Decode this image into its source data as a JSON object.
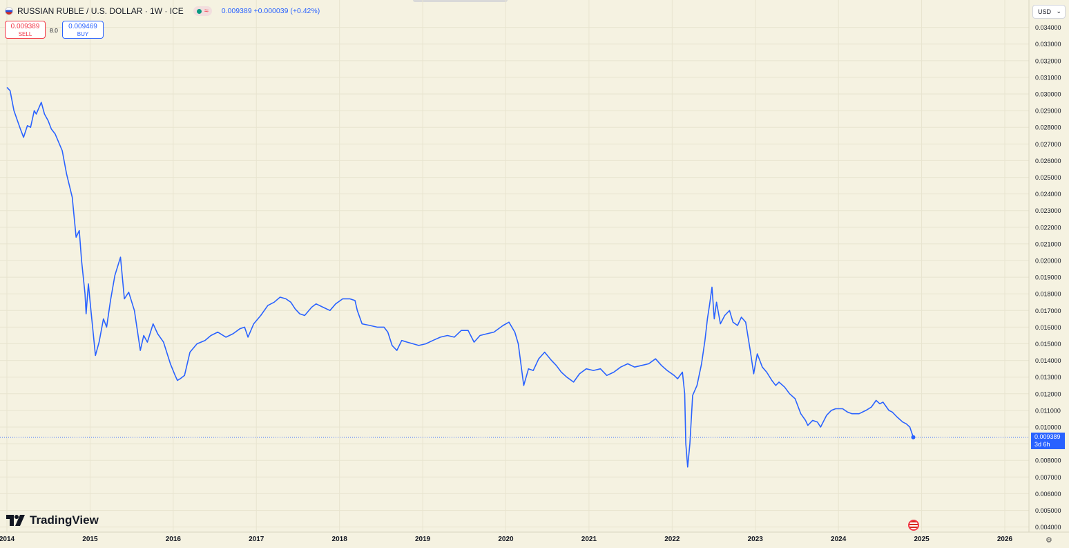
{
  "header": {
    "title": "RUSSIAN RUBLE / U.S. DOLLAR · 1W · ICE",
    "quote": "0.009389 +0.000039 (+0.42%)"
  },
  "trade": {
    "sell_price": "0.009389",
    "sell_label": "SELL",
    "spread": "8.0",
    "buy_price": "0.009469",
    "buy_label": "BUY"
  },
  "currency_selector": "USD",
  "last_price_label": {
    "price": "0.009389",
    "countdown": "3d 6h"
  },
  "brand": "TradingView",
  "colors": {
    "line": "#2962ff",
    "background": "#f5f2e1",
    "sell": "#f23645",
    "buy": "#2962ff"
  },
  "chart_data": {
    "type": "line",
    "title": "RUSSIAN RUBLE / U.S. DOLLAR · 1W · ICE",
    "xlabel": "",
    "ylabel": "",
    "x_ticks": [
      "2014",
      "2015",
      "2016",
      "2017",
      "2018",
      "2019",
      "2020",
      "2021",
      "2022",
      "2023",
      "2024",
      "2025",
      "2026"
    ],
    "y_ticks": [
      "0.004000",
      "0.005000",
      "0.006000",
      "0.007000",
      "0.008000",
      "0.009000",
      "0.010000",
      "0.011000",
      "0.012000",
      "0.013000",
      "0.014000",
      "0.015000",
      "0.016000",
      "0.017000",
      "0.018000",
      "0.019000",
      "0.020000",
      "0.021000",
      "0.022000",
      "0.023000",
      "0.024000",
      "0.025000",
      "0.026000",
      "0.027000",
      "0.028000",
      "0.029000",
      "0.030000",
      "0.031000",
      "0.032000",
      "0.033000",
      "0.034000"
    ],
    "ylim": [
      0.0039,
      0.0344
    ],
    "xlim": [
      "2014-01-01",
      "2026-09-01"
    ],
    "y_axis_side": "right",
    "grid": true,
    "last_price": 0.009389,
    "series": [
      {
        "values": [
          [
            "2014-01-01",
            0.0304
          ],
          [
            "2014-01-15",
            0.0302
          ],
          [
            "2014-02-01",
            0.029
          ],
          [
            "2014-03-01",
            0.0279
          ],
          [
            "2014-03-15",
            0.0274
          ],
          [
            "2014-04-01",
            0.0281
          ],
          [
            "2014-04-15",
            0.028
          ],
          [
            "2014-05-01",
            0.029
          ],
          [
            "2014-05-10",
            0.0288
          ],
          [
            "2014-06-01",
            0.0295
          ],
          [
            "2014-06-15",
            0.0288
          ],
          [
            "2014-07-01",
            0.0284
          ],
          [
            "2014-07-15",
            0.0279
          ],
          [
            "2014-08-01",
            0.0276
          ],
          [
            "2014-09-01",
            0.0266
          ],
          [
            "2014-09-20",
            0.0252
          ],
          [
            "2014-10-15",
            0.0238
          ],
          [
            "2014-11-01",
            0.0214
          ],
          [
            "2014-11-15",
            0.0218
          ],
          [
            "2014-11-25",
            0.02
          ],
          [
            "2014-12-10",
            0.018
          ],
          [
            "2014-12-15",
            0.0168
          ],
          [
            "2014-12-25",
            0.0186
          ],
          [
            "2015-01-05",
            0.017
          ],
          [
            "2015-01-25",
            0.0143
          ],
          [
            "2015-02-10",
            0.0151
          ],
          [
            "2015-03-01",
            0.0165
          ],
          [
            "2015-03-15",
            0.016
          ],
          [
            "2015-04-01",
            0.0176
          ],
          [
            "2015-04-20",
            0.0191
          ],
          [
            "2015-05-15",
            0.0202
          ],
          [
            "2015-06-01",
            0.0177
          ],
          [
            "2015-06-20",
            0.0181
          ],
          [
            "2015-07-15",
            0.017
          ],
          [
            "2015-08-10",
            0.0146
          ],
          [
            "2015-08-25",
            0.0155
          ],
          [
            "2015-09-10",
            0.0151
          ],
          [
            "2015-10-05",
            0.0162
          ],
          [
            "2015-10-25",
            0.0156
          ],
          [
            "2015-11-20",
            0.0151
          ],
          [
            "2015-12-20",
            0.0138
          ],
          [
            "2016-01-10",
            0.0131
          ],
          [
            "2016-01-20",
            0.0128
          ],
          [
            "2016-02-01",
            0.0129
          ],
          [
            "2016-02-20",
            0.0131
          ],
          [
            "2016-03-15",
            0.0145
          ],
          [
            "2016-04-15",
            0.015
          ],
          [
            "2016-05-20",
            0.0152
          ],
          [
            "2016-06-15",
            0.0155
          ],
          [
            "2016-07-15",
            0.0157
          ],
          [
            "2016-08-20",
            0.0154
          ],
          [
            "2016-09-20",
            0.0156
          ],
          [
            "2016-10-20",
            0.0159
          ],
          [
            "2016-11-10",
            0.016
          ],
          [
            "2016-11-25",
            0.0154
          ],
          [
            "2016-12-20",
            0.0162
          ],
          [
            "2017-01-20",
            0.0167
          ],
          [
            "2017-02-20",
            0.0173
          ],
          [
            "2017-03-20",
            0.0175
          ],
          [
            "2017-04-15",
            0.0178
          ],
          [
            "2017-05-10",
            0.0177
          ],
          [
            "2017-06-01",
            0.0175
          ],
          [
            "2017-06-20",
            0.0171
          ],
          [
            "2017-07-10",
            0.0168
          ],
          [
            "2017-08-01",
            0.0167
          ],
          [
            "2017-09-01",
            0.0172
          ],
          [
            "2017-09-20",
            0.0174
          ],
          [
            "2017-10-20",
            0.0172
          ],
          [
            "2017-11-20",
            0.017
          ],
          [
            "2017-12-15",
            0.0174
          ],
          [
            "2018-01-15",
            0.0177
          ],
          [
            "2018-02-15",
            0.0177
          ],
          [
            "2018-03-10",
            0.0176
          ],
          [
            "2018-03-20",
            0.017
          ],
          [
            "2018-04-10",
            0.0162
          ],
          [
            "2018-05-15",
            0.0161
          ],
          [
            "2018-06-15",
            0.016
          ],
          [
            "2018-07-15",
            0.016
          ],
          [
            "2018-08-01",
            0.0157
          ],
          [
            "2018-08-20",
            0.0149
          ],
          [
            "2018-09-10",
            0.0146
          ],
          [
            "2018-10-01",
            0.0152
          ],
          [
            "2018-10-25",
            0.0151
          ],
          [
            "2018-11-20",
            0.015
          ],
          [
            "2018-12-15",
            0.0149
          ],
          [
            "2019-01-15",
            0.015
          ],
          [
            "2019-02-15",
            0.0152
          ],
          [
            "2019-03-20",
            0.0154
          ],
          [
            "2019-04-20",
            0.0155
          ],
          [
            "2019-05-20",
            0.0154
          ],
          [
            "2019-06-20",
            0.0158
          ],
          [
            "2019-07-20",
            0.0158
          ],
          [
            "2019-08-15",
            0.0151
          ],
          [
            "2019-09-10",
            0.0155
          ],
          [
            "2019-10-10",
            0.0156
          ],
          [
            "2019-11-10",
            0.0157
          ],
          [
            "2019-12-20",
            0.0161
          ],
          [
            "2020-01-15",
            0.0163
          ],
          [
            "2020-02-10",
            0.0157
          ],
          [
            "2020-02-25",
            0.015
          ],
          [
            "2020-03-20",
            0.0125
          ],
          [
            "2020-04-10",
            0.0135
          ],
          [
            "2020-05-01",
            0.0134
          ],
          [
            "2020-05-25",
            0.0141
          ],
          [
            "2020-06-20",
            0.0145
          ],
          [
            "2020-07-20",
            0.014
          ],
          [
            "2020-08-10",
            0.0137
          ],
          [
            "2020-09-01",
            0.0133
          ],
          [
            "2020-09-25",
            0.013
          ],
          [
            "2020-10-25",
            0.0127
          ],
          [
            "2020-11-20",
            0.0132
          ],
          [
            "2020-12-20",
            0.0135
          ],
          [
            "2021-01-20",
            0.0134
          ],
          [
            "2021-02-20",
            0.0135
          ],
          [
            "2021-03-20",
            0.0131
          ],
          [
            "2021-04-20",
            0.0133
          ],
          [
            "2021-05-20",
            0.0136
          ],
          [
            "2021-06-20",
            0.0138
          ],
          [
            "2021-07-20",
            0.0136
          ],
          [
            "2021-08-20",
            0.0137
          ],
          [
            "2021-09-20",
            0.0138
          ],
          [
            "2021-10-20",
            0.0141
          ],
          [
            "2021-11-15",
            0.0137
          ],
          [
            "2021-12-10",
            0.0134
          ],
          [
            "2022-01-10",
            0.0131
          ],
          [
            "2022-01-25",
            0.0129
          ],
          [
            "2022-02-15",
            0.0133
          ],
          [
            "2022-02-25",
            0.012
          ],
          [
            "2022-03-02",
            0.009
          ],
          [
            "2022-03-10",
            0.0076
          ],
          [
            "2022-03-20",
            0.009
          ],
          [
            "2022-04-01",
            0.0119
          ],
          [
            "2022-04-20",
            0.0125
          ],
          [
            "2022-05-10",
            0.0138
          ],
          [
            "2022-05-25",
            0.0152
          ],
          [
            "2022-06-05",
            0.0165
          ],
          [
            "2022-06-15",
            0.0174
          ],
          [
            "2022-06-25",
            0.0184
          ],
          [
            "2022-07-05",
            0.0165
          ],
          [
            "2022-07-15",
            0.0175
          ],
          [
            "2022-08-01",
            0.0162
          ],
          [
            "2022-08-20",
            0.0167
          ],
          [
            "2022-09-10",
            0.017
          ],
          [
            "2022-09-25",
            0.0163
          ],
          [
            "2022-10-15",
            0.0161
          ],
          [
            "2022-11-01",
            0.0166
          ],
          [
            "2022-11-20",
            0.0163
          ],
          [
            "2022-12-10",
            0.0146
          ],
          [
            "2022-12-25",
            0.0132
          ],
          [
            "2023-01-10",
            0.0144
          ],
          [
            "2023-02-01",
            0.0136
          ],
          [
            "2023-02-20",
            0.0133
          ],
          [
            "2023-03-15",
            0.0128
          ],
          [
            "2023-04-01",
            0.0125
          ],
          [
            "2023-04-15",
            0.0127
          ],
          [
            "2023-05-10",
            0.0124
          ],
          [
            "2023-06-01",
            0.012
          ],
          [
            "2023-06-25",
            0.0117
          ],
          [
            "2023-07-20",
            0.0108
          ],
          [
            "2023-08-10",
            0.0104
          ],
          [
            "2023-08-20",
            0.0101
          ],
          [
            "2023-09-10",
            0.0104
          ],
          [
            "2023-10-01",
            0.0103
          ],
          [
            "2023-10-15",
            0.01
          ],
          [
            "2023-11-10",
            0.0107
          ],
          [
            "2023-12-01",
            0.011
          ],
          [
            "2023-12-20",
            0.0111
          ],
          [
            "2024-01-20",
            0.0111
          ],
          [
            "2024-02-10",
            0.0109
          ],
          [
            "2024-03-01",
            0.0108
          ],
          [
            "2024-04-01",
            0.0108
          ],
          [
            "2024-05-01",
            0.011
          ],
          [
            "2024-05-25",
            0.0112
          ],
          [
            "2024-06-15",
            0.0116
          ],
          [
            "2024-07-01",
            0.0114
          ],
          [
            "2024-07-15",
            0.0115
          ],
          [
            "2024-08-10",
            0.011
          ],
          [
            "2024-08-25",
            0.0109
          ],
          [
            "2024-09-15",
            0.0106
          ],
          [
            "2024-10-10",
            0.0103
          ],
          [
            "2024-10-25",
            0.0102
          ],
          [
            "2024-11-10",
            0.01
          ],
          [
            "2024-11-25",
            0.00939
          ]
        ]
      }
    ]
  }
}
